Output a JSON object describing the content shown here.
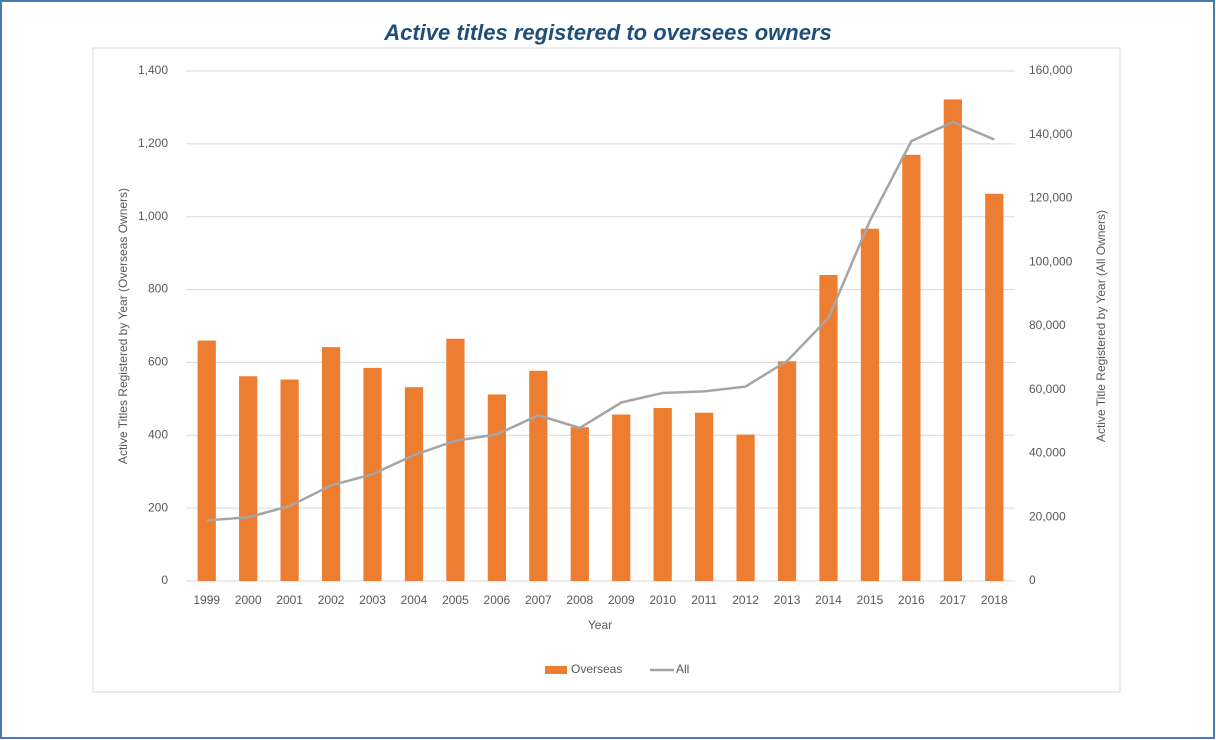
{
  "chart_data": {
    "type": "bar-line",
    "title": "Active titles registered to oversees owners",
    "x_label": "Year",
    "y_label": "Active Titles Registered by Year (Overseas Owners)",
    "y2_label": "Active Title Registered by Year (All Owners)",
    "categories": [
      "1999",
      "2000",
      "2001",
      "2002",
      "2003",
      "2004",
      "2005",
      "2006",
      "2007",
      "2008",
      "2009",
      "2010",
      "2011",
      "2012",
      "2013",
      "2014",
      "2015",
      "2016",
      "2017",
      "2018"
    ],
    "series": [
      {
        "name": "Overseas",
        "type": "bar",
        "color": "#ed7d31",
        "values": [
          660,
          562,
          553,
          642,
          585,
          532,
          665,
          512,
          577,
          422,
          457,
          475,
          462,
          402,
          603,
          840,
          967,
          1170,
          1322,
          1063
        ]
      },
      {
        "name": "All",
        "type": "line",
        "axis": "y2",
        "color": "#a5a5a5",
        "values": [
          19000,
          20000,
          23500,
          30000,
          33500,
          39500,
          44000,
          46000,
          52000,
          48000,
          56000,
          59000,
          59500,
          61000,
          69000,
          82500,
          113000,
          138000,
          144000,
          138500
        ]
      }
    ],
    "ylim": [
      0,
      1400
    ],
    "yticks": [
      0,
      200,
      400,
      600,
      800,
      {
        "value": 1000,
        "label": "1,000"
      },
      {
        "value": 1200,
        "label": "1,200"
      },
      {
        "value": 1400,
        "label": "1,400"
      }
    ],
    "y2lim": [
      0,
      160000
    ],
    "y2ticks": [
      0,
      {
        "value": 20000,
        "label": "20,000"
      },
      {
        "value": 40000,
        "label": "40,000"
      },
      {
        "value": 60000,
        "label": "60,000"
      },
      {
        "value": 80000,
        "label": "80,000"
      },
      {
        "value": 100000,
        "label": "100,000"
      },
      {
        "value": 120000,
        "label": "120,000"
      },
      {
        "value": 140000,
        "label": "140,000"
      },
      {
        "value": 160000,
        "label": "160,000"
      }
    ],
    "grid": true,
    "legend": "bottom"
  }
}
